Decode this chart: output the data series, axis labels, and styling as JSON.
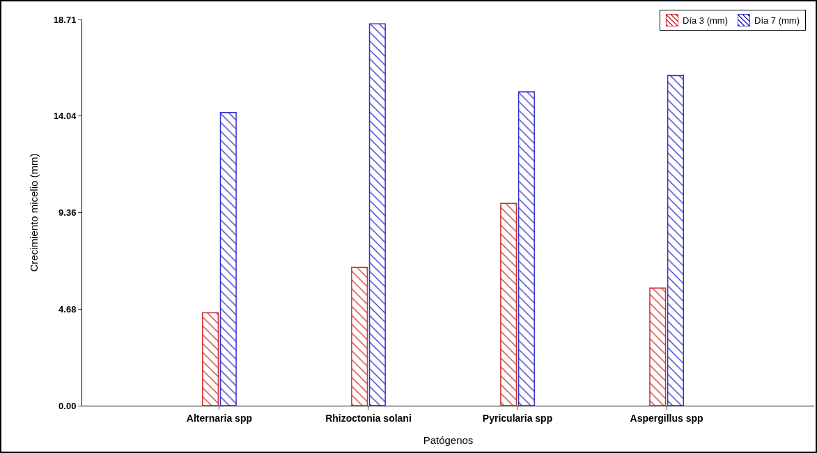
{
  "chart_data": {
    "type": "bar",
    "xlabel": "Patógenos",
    "ylabel": "Crecimiento micelio (mm)",
    "categories": [
      "Alternaria spp",
      "Rhizoctonia solani",
      "Pyricularia spp",
      "Aspergillus spp"
    ],
    "series": [
      {
        "name": "Día 3 (mm)",
        "color": "#cc3333",
        "values": [
          4.5,
          6.7,
          9.8,
          5.7
        ]
      },
      {
        "name": "Día 7 (mm)",
        "color": "#3333cc",
        "values": [
          14.2,
          18.5,
          15.2,
          16.0
        ]
      }
    ],
    "ylim": [
      0,
      18.71
    ],
    "yticks": [
      {
        "value": 0,
        "label": "0.00"
      },
      {
        "value": 4.68,
        "label": "4.68"
      },
      {
        "value": 9.36,
        "label": "9.36"
      },
      {
        "value": 14.04,
        "label": "14.04"
      },
      {
        "value": 18.71,
        "label": "18.71"
      }
    ],
    "grid": false,
    "legend": "top right"
  }
}
